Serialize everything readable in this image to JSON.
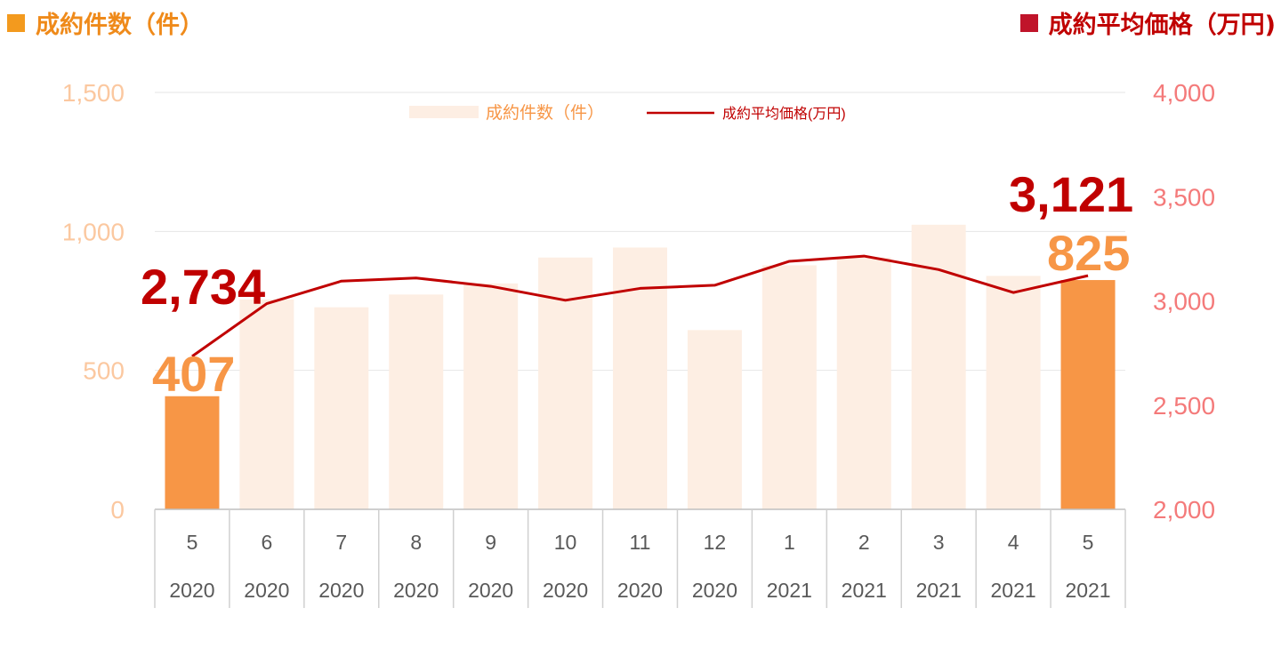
{
  "header": {
    "left_title": "成約件数（件）",
    "right_title": "成約平均価格（万円)"
  },
  "colors": {
    "bar_highlight": "#f79646",
    "bar_faded": "#fdeee3",
    "line": "#c00000",
    "left_axis": "#fbc8a0",
    "right_axis": "#f47a7a",
    "header_left": "#ef8a1a",
    "header_right": "#c00000"
  },
  "chart_data": {
    "type": "bar+line",
    "categories": [
      {
        "month": "5",
        "year": "2020"
      },
      {
        "month": "6",
        "year": "2020"
      },
      {
        "month": "7",
        "year": "2020"
      },
      {
        "month": "8",
        "year": "2020"
      },
      {
        "month": "9",
        "year": "2020"
      },
      {
        "month": "10",
        "year": "2020"
      },
      {
        "month": "11",
        "year": "2020"
      },
      {
        "month": "12",
        "year": "2020"
      },
      {
        "month": "1",
        "year": "2021"
      },
      {
        "month": "2",
        "year": "2021"
      },
      {
        "month": "3",
        "year": "2021"
      },
      {
        "month": "4",
        "year": "2021"
      },
      {
        "month": "5",
        "year": "2021"
      }
    ],
    "series": [
      {
        "name": "成約件数（件）",
        "kind": "bar",
        "axis": "left",
        "values": [
          407,
          755,
          727,
          773,
          813,
          906,
          942,
          645,
          878,
          906,
          1024,
          840,
          825
        ],
        "highlight": [
          true,
          false,
          false,
          false,
          false,
          false,
          false,
          false,
          false,
          false,
          false,
          false,
          true
        ]
      },
      {
        "name": "成約平均価格(万円)",
        "kind": "line",
        "axis": "right",
        "values": [
          2734,
          2987,
          3095,
          3110,
          3070,
          3003,
          3060,
          3075,
          3190,
          3215,
          3150,
          3040,
          3121
        ]
      }
    ],
    "left_axis": {
      "min": 0,
      "max": 1500,
      "ticks": [
        "0",
        "500",
        "1,000",
        "1,500"
      ],
      "tick_values": [
        0,
        500,
        1000,
        1500
      ]
    },
    "right_axis": {
      "min": 2000,
      "max": 4000,
      "ticks": [
        "2,000",
        "2,500",
        "3,000",
        "3,500",
        "4,000"
      ],
      "tick_values": [
        2000,
        2500,
        3000,
        3500,
        4000
      ]
    },
    "annotations": {
      "start_count": "407",
      "start_price": "2,734",
      "end_count": "825",
      "end_price": "3,121"
    },
    "legend": {
      "position": "top",
      "bar_label": "成約件数（件）",
      "line_label": "成約平均価格(万円)"
    },
    "grid": true
  }
}
